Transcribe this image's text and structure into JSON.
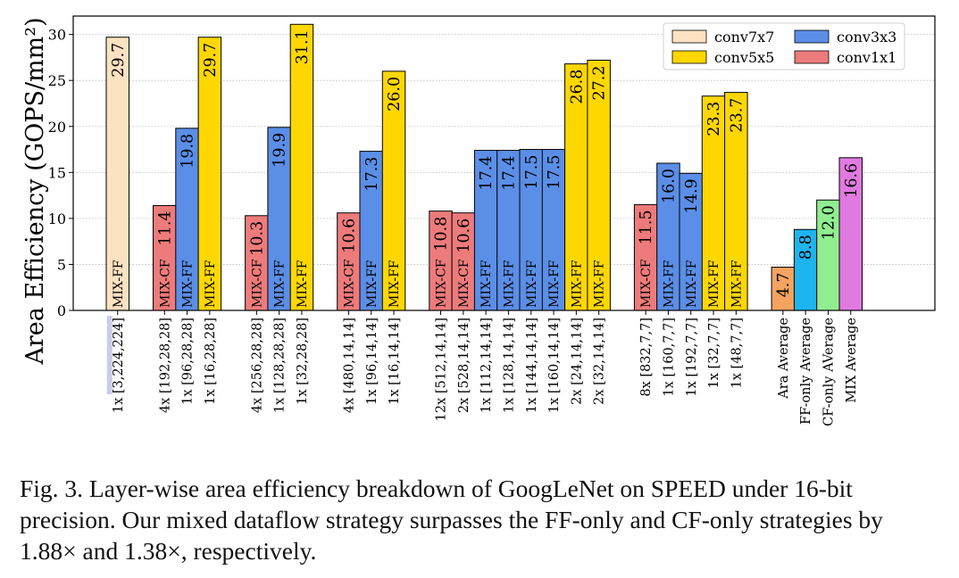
{
  "chart_data": {
    "type": "bar",
    "ylabel": "Area Efficiency (GOPS/mm²)",
    "ylim": [
      0,
      32
    ],
    "yticks": [
      0,
      5,
      10,
      15,
      20,
      25,
      30
    ],
    "grid": "horizontal dotted",
    "legend_position": "top-right",
    "legend": [
      {
        "key": "conv7x7",
        "label": "conv7x7",
        "color": "#FCE2C0"
      },
      {
        "key": "conv3x3",
        "label": "conv3x3",
        "color": "#5B8EE6"
      },
      {
        "key": "conv5x5",
        "label": "conv5x5",
        "color": "#FFD700"
      },
      {
        "key": "conv1x1",
        "label": "conv1x1",
        "color": "#EE7B7B"
      }
    ],
    "average_colors": {
      "Ara Average": "#F4A460",
      "FF-only Average": "#1EB4F0",
      "CF-only AVerage": "#90EE90",
      "MIX Average": "#E07AE0"
    },
    "groups": [
      {
        "bars": [
          {
            "category": "1x [3,224,224]",
            "value": 29.7,
            "label": "29.7",
            "type": "conv7x7",
            "strategy": "MIX-FF",
            "highlight": true
          }
        ]
      },
      {
        "bars": [
          {
            "category": "4x [192,28,28]",
            "value": 11.4,
            "label": "11.4",
            "type": "conv1x1",
            "strategy": "MIX-CF"
          },
          {
            "category": "1x [96,28,28]",
            "value": 19.8,
            "label": "19.8",
            "type": "conv3x3",
            "strategy": "MIX-FF"
          },
          {
            "category": "1x [16,28,28]",
            "value": 29.7,
            "label": "29.7",
            "type": "conv5x5",
            "strategy": "MIX-FF"
          }
        ]
      },
      {
        "bars": [
          {
            "category": "4x [256,28,28]",
            "value": 10.3,
            "label": "10.3",
            "type": "conv1x1",
            "strategy": "MIX-CF"
          },
          {
            "category": "1x [128,28,28]",
            "value": 19.9,
            "label": "19.9",
            "type": "conv3x3",
            "strategy": "MIX-FF"
          },
          {
            "category": "1x [32,28,28]",
            "value": 31.1,
            "label": "31.1",
            "type": "conv5x5",
            "strategy": "MIX-FF"
          }
        ]
      },
      {
        "bars": [
          {
            "category": "4x [480,14,14]",
            "value": 10.6,
            "label": "10.6",
            "type": "conv1x1",
            "strategy": "MIX-CF"
          },
          {
            "category": "1x [96,14,14]",
            "value": 17.3,
            "label": "17.3",
            "type": "conv3x3",
            "strategy": "MIX-FF"
          },
          {
            "category": "1x [16,14,14]",
            "value": 26.0,
            "label": "26.0",
            "type": "conv5x5",
            "strategy": "MIX-FF"
          }
        ]
      },
      {
        "bars": [
          {
            "category": "12x [512,14,14]",
            "value": 10.8,
            "label": "10.8",
            "type": "conv1x1",
            "strategy": "MIX-CF"
          },
          {
            "category": "2x [528,14,14]",
            "value": 10.6,
            "label": "10.6",
            "type": "conv1x1",
            "strategy": "MIX-CF"
          },
          {
            "category": "1x [112,14,14]",
            "value": 17.4,
            "label": "17.4",
            "type": "conv3x3",
            "strategy": "MIX-FF"
          },
          {
            "category": "1x [128,14,14]",
            "value": 17.4,
            "label": "17.4",
            "type": "conv3x3",
            "strategy": "MIX-FF"
          },
          {
            "category": "1x [144,14,14]",
            "value": 17.5,
            "label": "17.5",
            "type": "conv3x3",
            "strategy": "MIX-FF"
          },
          {
            "category": "1x [160,14,14]",
            "value": 17.5,
            "label": "17.5",
            "type": "conv3x3",
            "strategy": "MIX-FF"
          },
          {
            "category": "2x [24,14,14]",
            "value": 26.8,
            "label": "26.8",
            "type": "conv5x5",
            "strategy": "MIX-FF"
          },
          {
            "category": "2x [32,14,14]",
            "value": 27.2,
            "label": "27.2",
            "type": "conv5x5",
            "strategy": "MIX-FF"
          }
        ]
      },
      {
        "bars": [
          {
            "category": "8x [832,7,7]",
            "value": 11.5,
            "label": "11.5",
            "type": "conv1x1",
            "strategy": "MIX-CF"
          },
          {
            "category": "1x [160,7,7]",
            "value": 16.0,
            "label": "16.0",
            "type": "conv3x3",
            "strategy": "MIX-FF"
          },
          {
            "category": "1x [192,7,7]",
            "value": 14.9,
            "label": "14.9",
            "type": "conv3x3",
            "strategy": "MIX-FF"
          },
          {
            "category": "1x [32,7,7]",
            "value": 23.3,
            "label": "23.3",
            "type": "conv5x5",
            "strategy": "MIX-FF"
          },
          {
            "category": "1x [48,7,7]",
            "value": 23.7,
            "label": "23.7",
            "type": "conv5x5",
            "strategy": "MIX-FF"
          }
        ]
      },
      {
        "bars": [
          {
            "category": "Ara Average",
            "value": 4.7,
            "label": "4.7",
            "type": "average"
          },
          {
            "category": "FF-only Average",
            "value": 8.8,
            "label": "8.8",
            "type": "average"
          },
          {
            "category": "CF-only AVerage",
            "value": 12.0,
            "label": "12.0",
            "type": "average"
          },
          {
            "category": "MIX Average",
            "value": 16.6,
            "label": "16.6",
            "type": "average"
          }
        ]
      }
    ]
  },
  "caption": "Fig. 3.  Layer-wise area efficiency breakdown of GoogLeNet on SPEED under 16-bit precision. Our mixed dataflow strategy surpasses the FF-only and CF-only strategies by 1.88× and 1.38×, respectively."
}
